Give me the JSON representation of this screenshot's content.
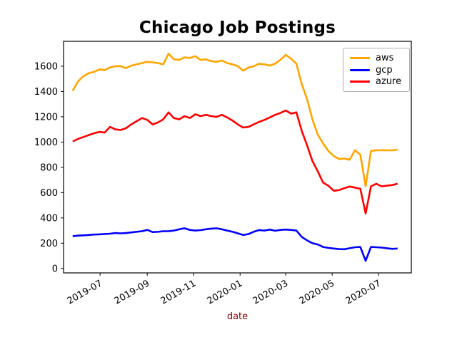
{
  "chart_data": {
    "type": "line",
    "title": "Chicago Job Postings",
    "xlabel": "date",
    "xlabel_color": "#8B0000",
    "grid": false,
    "legend_position": "upper right",
    "axis_color": "#000000",
    "xlim": [
      "2019-05-14",
      "2020-08-13"
    ],
    "ylim": [
      -35,
      1797
    ],
    "yticks": [
      0,
      200,
      400,
      600,
      800,
      1000,
      1200,
      1400,
      1600
    ],
    "xticks": [
      {
        "date": "2019-07-01",
        "label": "2019-07"
      },
      {
        "date": "2019-09-01",
        "label": "2019-09"
      },
      {
        "date": "2019-11-01",
        "label": "2019-11"
      },
      {
        "date": "2020-01-01",
        "label": "2020-01"
      },
      {
        "date": "2020-03-01",
        "label": "2020-03"
      },
      {
        "date": "2020-05-01",
        "label": "2020-05"
      },
      {
        "date": "2020-07-01",
        "label": "2020-07"
      }
    ],
    "x": [
      "2019-05-26",
      "2019-06-02",
      "2019-06-09",
      "2019-06-16",
      "2019-06-23",
      "2019-06-30",
      "2019-07-07",
      "2019-07-14",
      "2019-07-21",
      "2019-07-28",
      "2019-08-04",
      "2019-08-11",
      "2019-08-18",
      "2019-08-25",
      "2019-09-01",
      "2019-09-08",
      "2019-09-15",
      "2019-09-22",
      "2019-09-29",
      "2019-10-06",
      "2019-10-13",
      "2019-10-20",
      "2019-10-27",
      "2019-11-03",
      "2019-11-10",
      "2019-11-17",
      "2019-11-24",
      "2019-12-01",
      "2019-12-08",
      "2019-12-15",
      "2019-12-22",
      "2019-12-29",
      "2020-01-05",
      "2020-01-12",
      "2020-01-19",
      "2020-01-26",
      "2020-02-02",
      "2020-02-09",
      "2020-02-16",
      "2020-02-23",
      "2020-03-01",
      "2020-03-08",
      "2020-03-15",
      "2020-03-22",
      "2020-03-29",
      "2020-04-05",
      "2020-04-12",
      "2020-04-19",
      "2020-04-26",
      "2020-05-03",
      "2020-05-10",
      "2020-05-17",
      "2020-05-24",
      "2020-05-31",
      "2020-06-07",
      "2020-06-14",
      "2020-06-21",
      "2020-06-28",
      "2020-07-05",
      "2020-07-12",
      "2020-07-19",
      "2020-07-26"
    ],
    "series": [
      {
        "name": "aws",
        "color": "#FFA500",
        "values": [
          1405,
          1480,
          1520,
          1545,
          1555,
          1575,
          1570,
          1590,
          1600,
          1600,
          1585,
          1605,
          1615,
          1625,
          1635,
          1630,
          1625,
          1615,
          1700,
          1655,
          1650,
          1670,
          1665,
          1680,
          1650,
          1655,
          1640,
          1635,
          1645,
          1625,
          1615,
          1600,
          1565,
          1590,
          1600,
          1620,
          1615,
          1605,
          1620,
          1650,
          1690,
          1660,
          1620,
          1460,
          1340,
          1180,
          1060,
          990,
          930,
          890,
          865,
          870,
          860,
          935,
          900,
          650,
          930,
          935,
          935,
          935,
          935,
          940
        ]
      },
      {
        "name": "gcp",
        "color": "#0000FF",
        "values": [
          255,
          260,
          262,
          265,
          268,
          270,
          272,
          275,
          280,
          278,
          280,
          285,
          290,
          295,
          305,
          288,
          290,
          295,
          295,
          300,
          310,
          318,
          305,
          300,
          303,
          310,
          315,
          318,
          310,
          300,
          290,
          278,
          265,
          272,
          290,
          304,
          300,
          308,
          298,
          305,
          308,
          305,
          300,
          250,
          222,
          200,
          190,
          170,
          163,
          158,
          153,
          152,
          160,
          168,
          170,
          60,
          170,
          168,
          165,
          160,
          155,
          158
        ]
      },
      {
        "name": "azure",
        "color": "#FF0000",
        "values": [
          1005,
          1025,
          1040,
          1055,
          1070,
          1080,
          1075,
          1120,
          1100,
          1095,
          1110,
          1140,
          1165,
          1190,
          1175,
          1140,
          1155,
          1180,
          1235,
          1190,
          1180,
          1205,
          1190,
          1220,
          1205,
          1215,
          1205,
          1200,
          1215,
          1195,
          1170,
          1140,
          1115,
          1120,
          1140,
          1160,
          1175,
          1195,
          1215,
          1230,
          1250,
          1225,
          1235,
          1090,
          975,
          850,
          770,
          680,
          655,
          615,
          620,
          635,
          648,
          640,
          630,
          435,
          650,
          670,
          650,
          655,
          660,
          670
        ]
      }
    ]
  }
}
